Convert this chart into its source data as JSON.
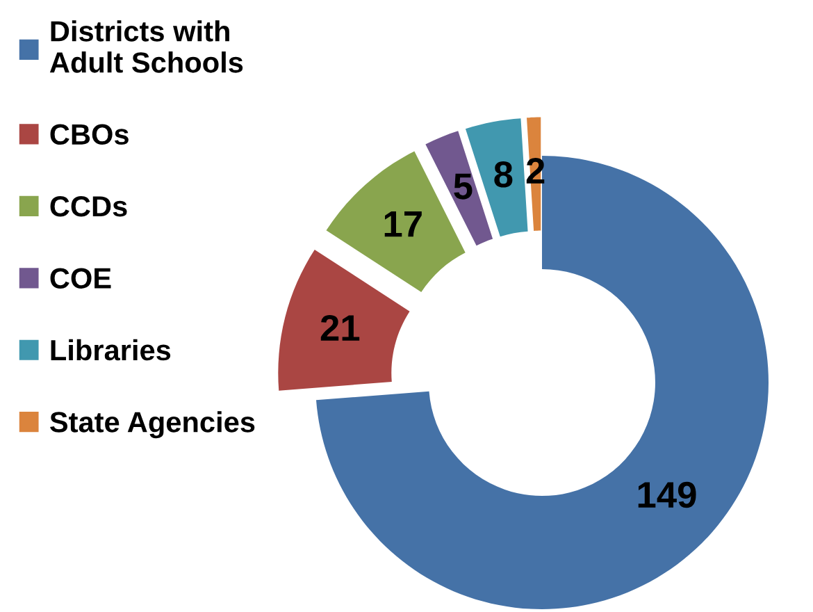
{
  "chart_data": {
    "type": "donut",
    "categories": [
      "Districts with\nAdult Schools",
      "CBOs",
      "CCDs",
      "COE",
      "Libraries",
      "State Agencies"
    ],
    "values": [
      149,
      21,
      17,
      5,
      8,
      2
    ],
    "colors": [
      "#4572a7",
      "#aa4643",
      "#89a54e",
      "#71588f",
      "#4198af",
      "#db843d"
    ],
    "data_labels": true,
    "legend": "left"
  }
}
